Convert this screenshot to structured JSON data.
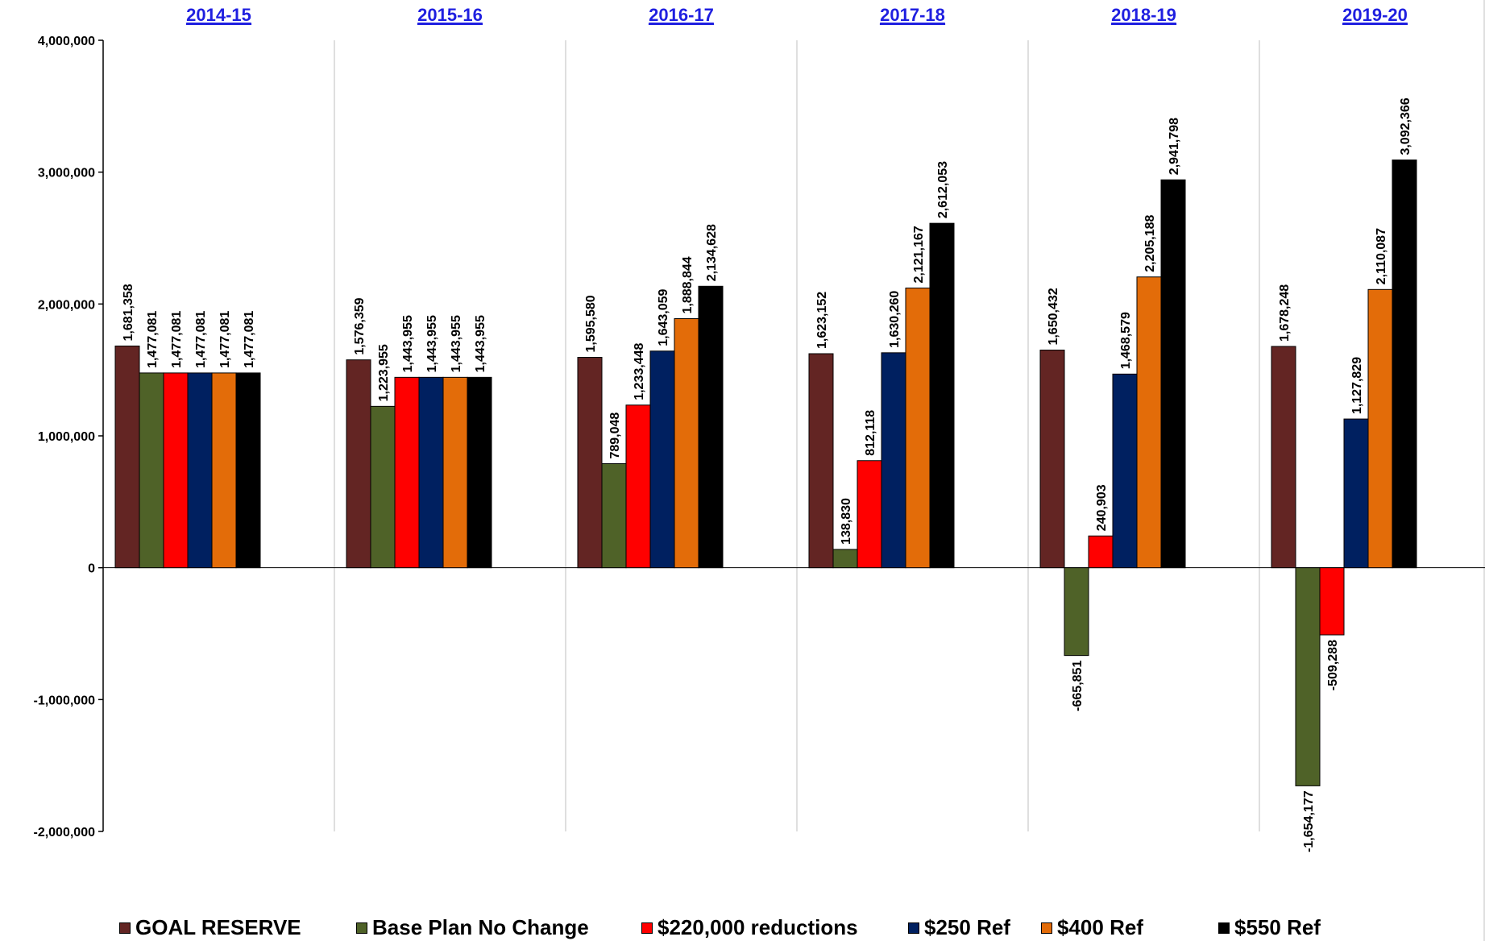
{
  "chart_data": {
    "type": "bar",
    "categories": [
      "2014-15",
      "2015-16",
      "2016-17",
      "2017-18",
      "2018-19",
      "2019-20"
    ],
    "series": [
      {
        "name": "GOAL RESERVE",
        "color": "#632523",
        "values": [
          1681358,
          1576359,
          1595580,
          1623152,
          1650432,
          1678248
        ]
      },
      {
        "name": "Base Plan No Change",
        "color": "#4F6228",
        "values": [
          1477081,
          1223955,
          789048,
          138830,
          -665851,
          -1654177
        ]
      },
      {
        "name": "$220,000 reductions",
        "color": "#FF0000",
        "values": [
          1477081,
          1443955,
          1233448,
          812118,
          240903,
          -509288
        ]
      },
      {
        "name": "$250 Ref",
        "color": "#002060",
        "values": [
          1477081,
          1443955,
          1643059,
          1630260,
          1468579,
          1127829
        ]
      },
      {
        "name": "$400 Ref",
        "color": "#E36C09",
        "values": [
          1477081,
          1443955,
          1888844,
          2121167,
          2205188,
          2110087
        ]
      },
      {
        "name": "$550 Ref",
        "color": "#000000",
        "values": [
          1477081,
          1443955,
          2134628,
          2612053,
          2941798,
          3092366
        ]
      }
    ],
    "data_labels": [
      [
        "1,681,358",
        "1,576,359",
        "1,595,580",
        "1,623,152",
        "1,650,432",
        "1,678,248"
      ],
      [
        "1,477,081",
        "1,223,955",
        "789,048",
        "138,830",
        "-665,851",
        "-1,654,177"
      ],
      [
        "1,477,081",
        "1,443,955",
        "1,233,448",
        "812,118",
        "240,903",
        "-509,288"
      ],
      [
        "1,477,081",
        "1,443,955",
        "1,643,059",
        "1,630,260",
        "1,468,579",
        "1,127,829"
      ],
      [
        "1,477,081",
        "1,443,955",
        "1,888,844",
        "2,121,167",
        "2,205,188",
        "2,110,087"
      ],
      [
        "1,477,081",
        "1,443,955",
        "2,134,628",
        "2,612,053",
        "2,941,798",
        "3,092,366"
      ]
    ],
    "y_ticks": [
      4000000,
      3000000,
      2000000,
      1000000,
      0,
      -1000000,
      -2000000
    ],
    "y_tick_labels": [
      "4,000,000",
      "3,000,000",
      "2,000,000",
      "1,000,000",
      "0",
      "-1,000,000",
      "-2,000,000"
    ],
    "ylim": [
      -2000000,
      4000000
    ],
    "title": "",
    "xlabel": "",
    "ylabel": "",
    "category_label_position": "top",
    "category_label_color": "#1F1FE0",
    "category_label_underline": true,
    "vertical_gridlines": true,
    "horizontal_gridlines": false,
    "legend_position": "bottom"
  }
}
